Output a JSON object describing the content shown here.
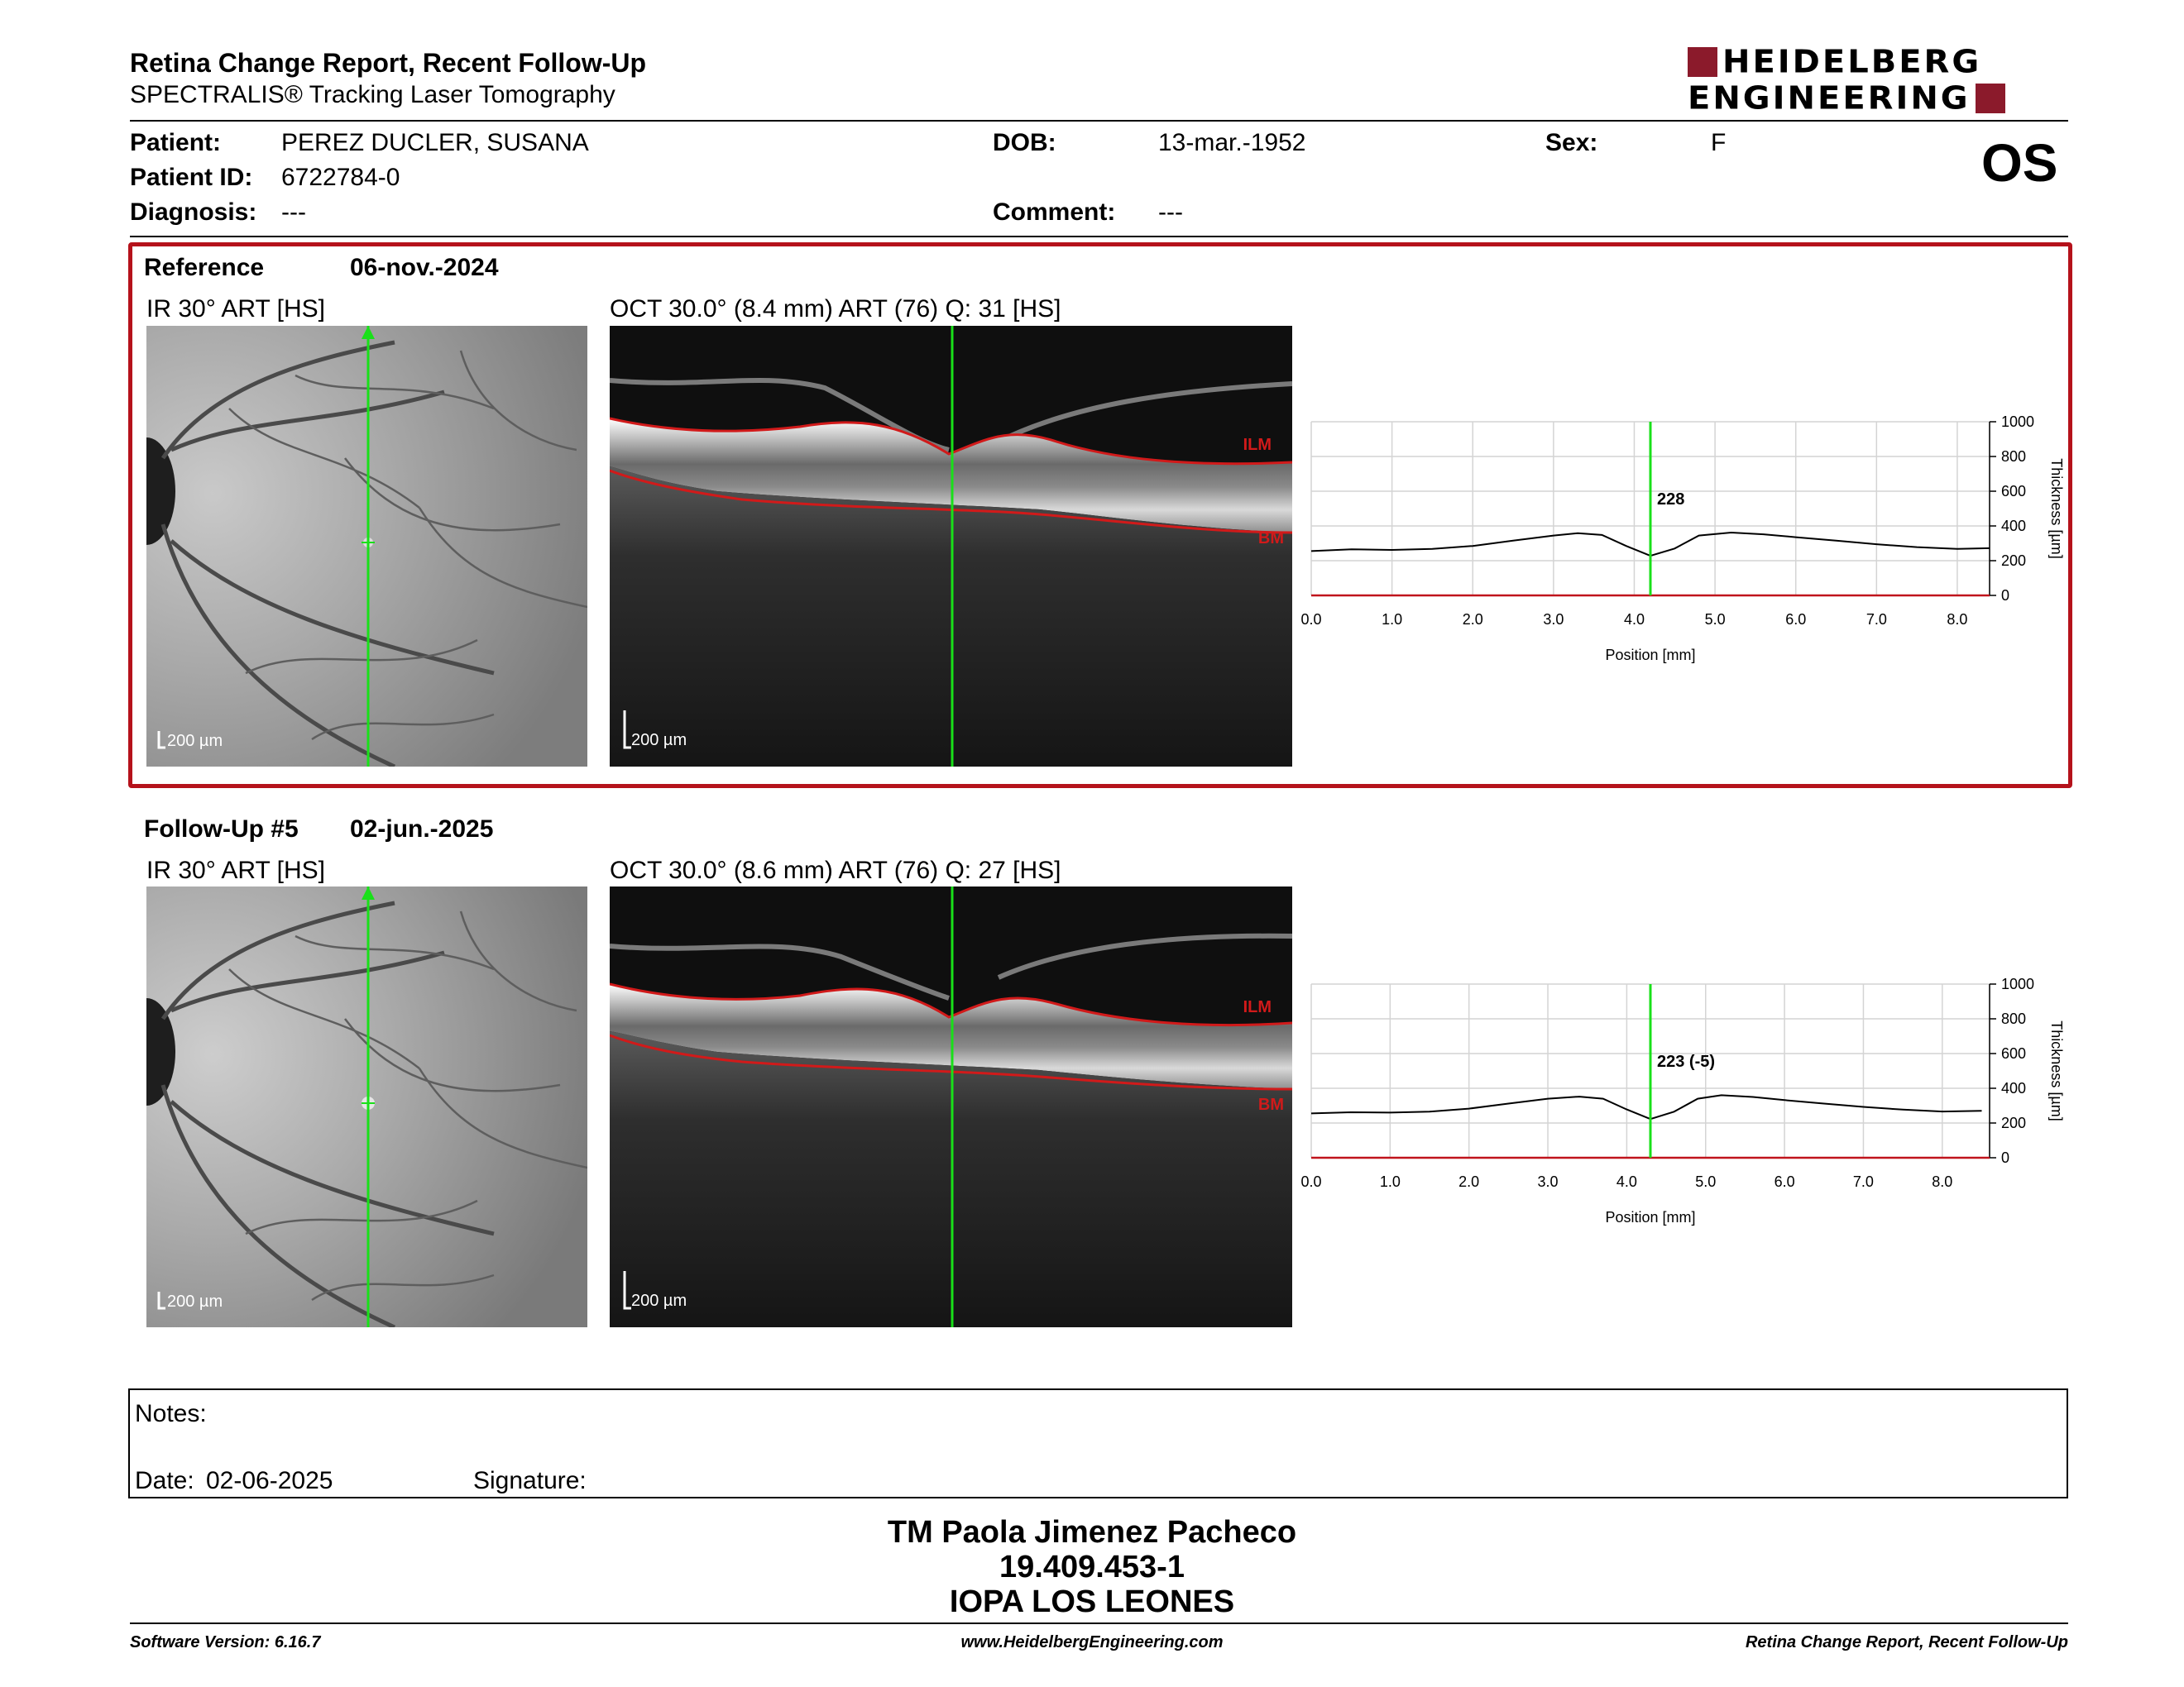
{
  "header": {
    "title": "Retina Change Report, Recent Follow-Up",
    "subtitle": "SPECTRALIS® Tracking Laser Tomography",
    "logo_line1": "HEIDELBERG",
    "logo_line2": "ENGINEERING",
    "eye": "OS"
  },
  "patient": {
    "name_label": "Patient:",
    "name": "PEREZ DUCLER, SUSANA",
    "id_label": "Patient ID:",
    "id": "6722784-0",
    "diagnosis_label": "Diagnosis:",
    "diagnosis": "---",
    "dob_label": "DOB:",
    "dob": "13-mar.-1952",
    "comment_label": "Comment:",
    "comment": "---",
    "sex_label": "Sex:",
    "sex": "F"
  },
  "reference": {
    "label": "Reference",
    "date": "06-nov.-2024",
    "ir_label": "IR 30° ART [HS]",
    "oct_label": "OCT 30.0° (8.4 mm) ART (76) Q: 31 [HS]",
    "scale": "200 µm",
    "ilm": "ILM",
    "bm": "BM"
  },
  "followup": {
    "label": "Follow-Up #5",
    "date": "02-jun.-2025",
    "ir_label": "IR 30° ART [HS]",
    "oct_label": "OCT 30.0° (8.6 mm) ART (76) Q: 27 [HS]",
    "scale": "200 µm",
    "ilm": "ILM",
    "bm": "BM"
  },
  "chart_data": [
    {
      "type": "line",
      "xlabel": "Position [mm]",
      "ylabel": "Thickness [µm]",
      "xlim": [
        0,
        8.4
      ],
      "ylim": [
        0,
        1000
      ],
      "x_ticks": [
        "0.0",
        "1.0",
        "2.0",
        "3.0",
        "4.0",
        "5.0",
        "6.0",
        "7.0",
        "8.0"
      ],
      "y_ticks": [
        "0",
        "200",
        "400",
        "600",
        "800",
        "1000"
      ],
      "cursor_x": 4.2,
      "cursor_label": "228",
      "grid": true,
      "series": [
        {
          "x": [
            0,
            0.5,
            1,
            1.5,
            2,
            2.5,
            3,
            3.3,
            3.6,
            3.9,
            4.2,
            4.5,
            4.8,
            5.2,
            5.6,
            6,
            6.5,
            7,
            7.5,
            8,
            8.4
          ],
          "values": [
            255,
            265,
            262,
            268,
            285,
            315,
            345,
            358,
            348,
            285,
            228,
            270,
            345,
            362,
            352,
            335,
            315,
            295,
            278,
            268,
            272
          ]
        }
      ]
    },
    {
      "type": "line",
      "xlabel": "Position [mm]",
      "ylabel": "Thickness [µm]",
      "xlim": [
        0,
        8.6
      ],
      "ylim": [
        0,
        1000
      ],
      "x_ticks": [
        "0.0",
        "1.0",
        "2.0",
        "3.0",
        "4.0",
        "5.0",
        "6.0",
        "7.0",
        "8.0"
      ],
      "y_ticks": [
        "0",
        "200",
        "400",
        "600",
        "800",
        "1000"
      ],
      "cursor_x": 4.3,
      "cursor_label": "223 (-5)",
      "grid": true,
      "series": [
        {
          "x": [
            0,
            0.5,
            1,
            1.5,
            2,
            2.5,
            3,
            3.4,
            3.7,
            4,
            4.3,
            4.6,
            4.9,
            5.2,
            5.6,
            6,
            6.5,
            7,
            7.5,
            8,
            8.5
          ],
          "values": [
            255,
            262,
            260,
            265,
            283,
            312,
            340,
            352,
            340,
            278,
            223,
            265,
            340,
            360,
            350,
            332,
            312,
            293,
            277,
            266,
            270
          ]
        }
      ]
    }
  ],
  "notes": {
    "label": "Notes:",
    "date_label": "Date:",
    "date": "02-06-2025",
    "signature_label": "Signature:"
  },
  "signature_block": {
    "name": "TM Paola Jimenez Pacheco",
    "rut": "19.409.453-1",
    "org": "IOPA LOS LEONES"
  },
  "footer": {
    "software": "Software Version: 6.16.7",
    "website": "www.HeidelbergEngineering.com",
    "report": "Retina Change Report, Recent Follow-Up"
  }
}
